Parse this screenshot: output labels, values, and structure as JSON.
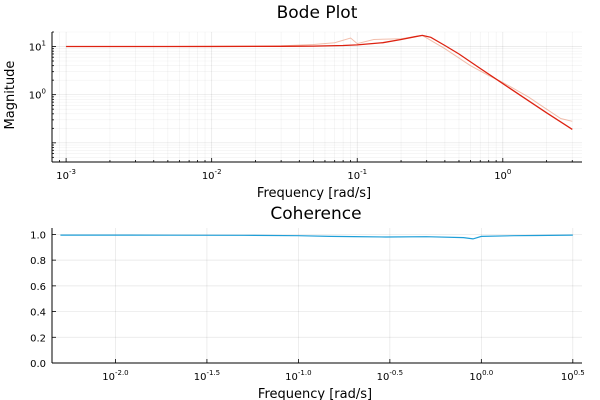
{
  "chart_data": [
    {
      "type": "line",
      "title": "Bode Plot",
      "xlabel": "Frequency [rad/s]",
      "ylabel": "Magnitude",
      "xscale": "log",
      "yscale": "log",
      "xlim": [
        0.0008,
        3.5
      ],
      "ylim": [
        0.04,
        20
      ],
      "x_ticks": [
        {
          "base": "10",
          "exp": "-3"
        },
        {
          "base": "10",
          "exp": "-2"
        },
        {
          "base": "10",
          "exp": "-1"
        },
        {
          "base": "10",
          "exp": "0"
        }
      ],
      "y_ticks": [
        {
          "base": "10",
          "exp": "1"
        },
        {
          "base": "10",
          "exp": "0"
        }
      ],
      "grid": true,
      "series": [
        {
          "color": "#e26f46",
          "style": "noisy estimate (light)",
          "x": [
            0.001,
            0.005,
            0.01,
            0.03,
            0.05,
            0.07,
            0.09,
            0.1,
            0.13,
            0.2,
            0.28,
            0.4,
            0.6,
            0.8,
            1.0,
            1.5,
            2.0,
            2.5,
            3.0
          ],
          "y": [
            10,
            10,
            10.2,
            10.3,
            11,
            12,
            15,
            11.5,
            14,
            14.5,
            17,
            9,
            4,
            2.5,
            1.8,
            0.9,
            0.5,
            0.32,
            0.28
          ]
        },
        {
          "color": "#dd2211",
          "style": "model (solid)",
          "x": [
            0.001,
            0.005,
            0.01,
            0.03,
            0.05,
            0.08,
            0.1,
            0.15,
            0.2,
            0.25,
            0.28,
            0.32,
            0.4,
            0.5,
            0.7,
            1.0,
            1.5,
            2.0,
            3.0
          ],
          "y": [
            10,
            10,
            10,
            10.1,
            10.2,
            10.5,
            10.8,
            12,
            14,
            16,
            17,
            15.5,
            10.5,
            7,
            3.5,
            1.7,
            0.75,
            0.42,
            0.19
          ]
        }
      ]
    },
    {
      "type": "line",
      "title": "Coherence",
      "xlabel": "Frequency [rad/s]",
      "ylabel": "",
      "xscale": "log",
      "xlim": [
        0.0045,
        3.55
      ],
      "ylim": [
        0,
        1.05
      ],
      "x_ticks": [
        {
          "base": "10",
          "exp": "-2.0"
        },
        {
          "base": "10",
          "exp": "-1.5"
        },
        {
          "base": "10",
          "exp": "-1.0"
        },
        {
          "base": "10",
          "exp": "-0.5"
        },
        {
          "base": "10",
          "exp": "0.0"
        },
        {
          "base": "10",
          "exp": "0.5"
        }
      ],
      "y_ticks": [
        "0.0",
        "0.2",
        "0.4",
        "0.6",
        "0.8",
        "1.0"
      ],
      "grid": true,
      "series": [
        {
          "color": "#1f9fd8",
          "x": [
            0.005,
            0.01,
            0.02,
            0.05,
            0.1,
            0.15,
            0.2,
            0.3,
            0.5,
            0.8,
            0.9,
            1.0,
            1.5,
            2.0,
            3.16
          ],
          "y": [
            0.995,
            0.995,
            0.994,
            0.993,
            0.99,
            0.985,
            0.983,
            0.98,
            0.982,
            0.975,
            0.965,
            0.985,
            0.99,
            0.992,
            0.995
          ]
        }
      ]
    }
  ]
}
